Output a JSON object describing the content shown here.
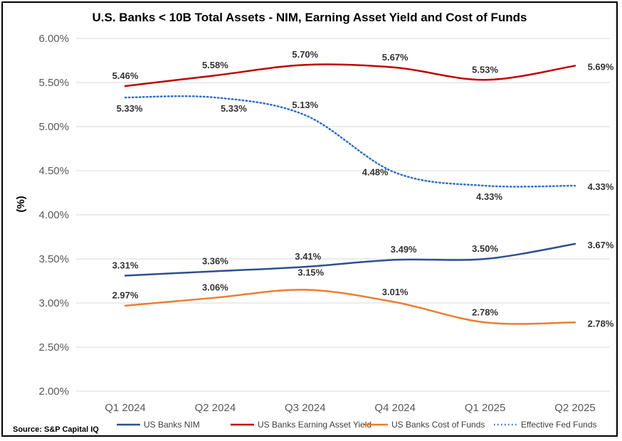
{
  "chart_data": {
    "type": "line",
    "title": "U.S. Banks < 10B Total Assets - NIM, Earning Asset Yield and Cost of Funds",
    "ylabel": "(%)",
    "xlabel": "",
    "categories": [
      "Q1 2024",
      "Q2 2024",
      "Q3 2024",
      "Q4 2024",
      "Q1 2025",
      "Q2 2025"
    ],
    "ylim": [
      2.0,
      6.0
    ],
    "yticks": [
      "2.00%",
      "2.50%",
      "3.00%",
      "3.50%",
      "4.00%",
      "4.50%",
      "5.00%",
      "5.50%",
      "6.00%"
    ],
    "grid": true,
    "legend_position": "bottom",
    "series": [
      {
        "name": "US Banks NIM",
        "values": [
          3.31,
          3.36,
          3.41,
          3.49,
          3.5,
          3.67
        ],
        "labels": [
          "3.31%",
          "3.36%",
          "3.41%",
          "3.49%",
          "3.50%",
          "3.67%"
        ],
        "color": "#2e4f8f",
        "style": "solid"
      },
      {
        "name": "US Banks Earning Asset Yield",
        "values": [
          5.46,
          5.58,
          5.7,
          5.67,
          5.53,
          5.69
        ],
        "labels": [
          "5.46%",
          "5.58%",
          "5.70%",
          "5.67%",
          "5.53%",
          "5.69%"
        ],
        "color": "#c00000",
        "style": "solid"
      },
      {
        "name": "US Banks Cost of Funds",
        "values": [
          2.97,
          3.06,
          3.15,
          3.01,
          2.78,
          2.78
        ],
        "labels": [
          "2.97%",
          "3.06%",
          "3.15%",
          "3.01%",
          "2.78%",
          "2.78%"
        ],
        "color": "#ed7d31",
        "style": "solid"
      },
      {
        "name": "Effective Fed Funds",
        "values": [
          5.33,
          5.33,
          5.13,
          4.48,
          4.33,
          4.33
        ],
        "labels": [
          "5.33%",
          "5.33%",
          "5.13%",
          "4.48%",
          "4.33%",
          "4.33%"
        ],
        "color": "#2f6fc6",
        "style": "dotted"
      }
    ],
    "source": "Source: S&P Capital IQ"
  }
}
